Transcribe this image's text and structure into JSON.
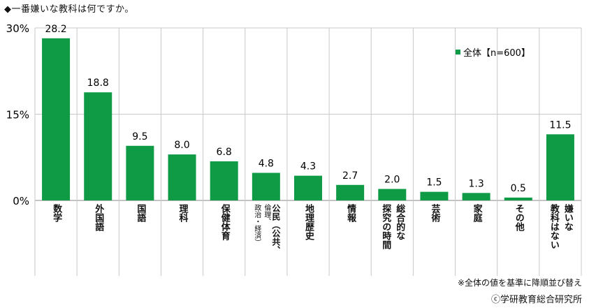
{
  "title": "◆一番嫌いな教科は何ですか。",
  "note": "※全体の値を基準に降順並び替え",
  "credit": "ⓒ学研教育総合研究所",
  "chart_data": {
    "type": "bar",
    "categories": [
      "数学",
      "外国語",
      "国語",
      "理科",
      "保健体育",
      "公民（公共、倫理、政治・経済）",
      "地理歴史",
      "情報",
      "総合的な探究の時間",
      "芸術",
      "家庭",
      "その他",
      "嫌いな教科はない"
    ],
    "category_lines": [
      [
        "数学"
      ],
      [
        "外国語"
      ],
      [
        "国語"
      ],
      [
        "理科"
      ],
      [
        "保健体育"
      ],
      [
        "公民（公共、",
        "倫理、",
        "政治・経済）"
      ],
      [
        "地理歴史"
      ],
      [
        "情報"
      ],
      [
        "総合的な",
        "探究の時間"
      ],
      [
        "芸術"
      ],
      [
        "家庭"
      ],
      [
        "その他"
      ],
      [
        "嫌いな",
        "教科はない"
      ]
    ],
    "series": [
      {
        "name": "全体【n=600】",
        "values": [
          28.2,
          18.8,
          9.5,
          8.0,
          6.8,
          4.8,
          4.3,
          2.7,
          2.0,
          1.5,
          1.3,
          0.5,
          11.5
        ]
      }
    ],
    "value_labels": [
      "28.2",
      "18.8",
      "9.5",
      "8.0",
      "6.8",
      "4.8",
      "4.3",
      "2.7",
      "2.0",
      "1.5",
      "1.3",
      "0.5",
      "11.5"
    ],
    "y_ticks": [
      "0%",
      "15%",
      "30%"
    ],
    "ylim": [
      0,
      30
    ],
    "legend_position": "top-right",
    "colors": {
      "bar": "#0f9a46",
      "grid": "#c8c8c8"
    }
  }
}
